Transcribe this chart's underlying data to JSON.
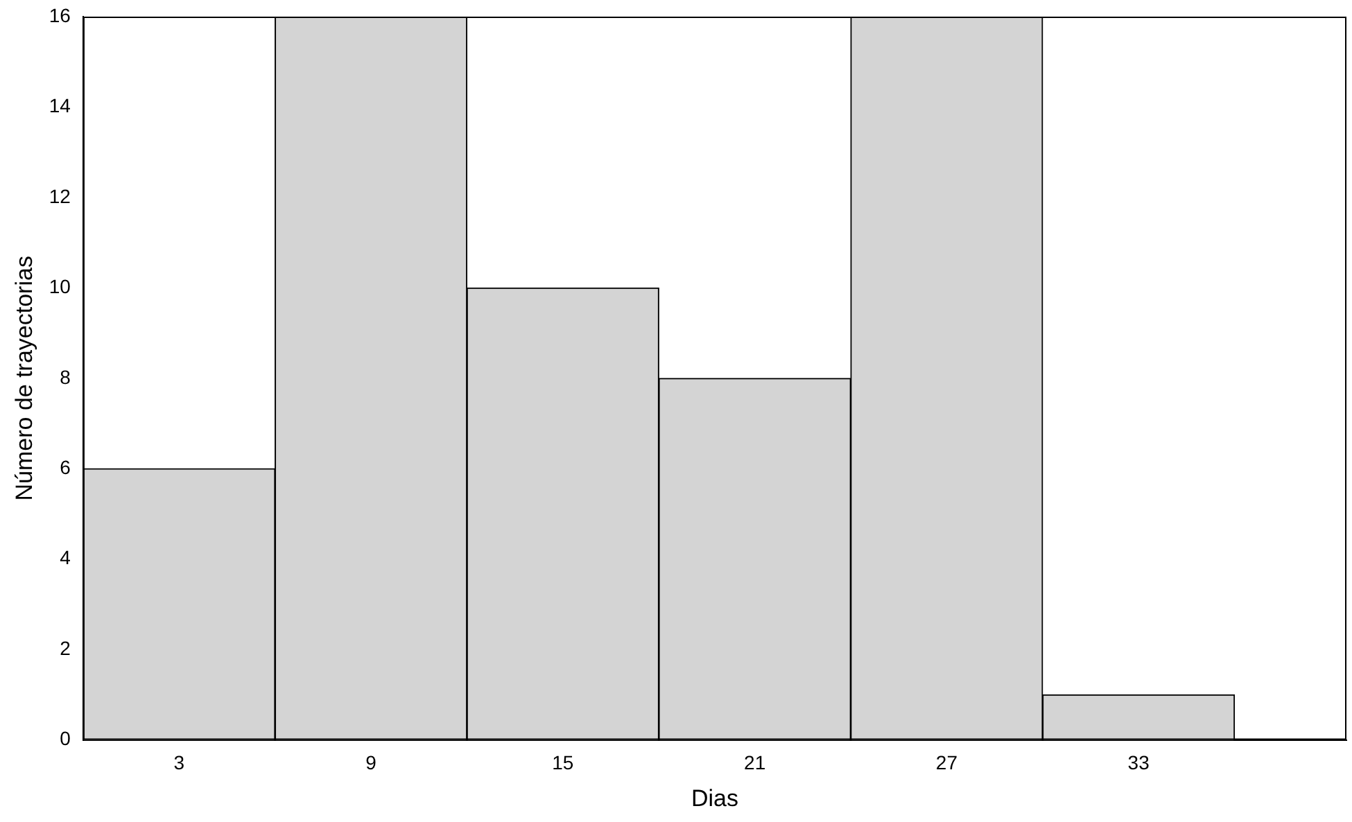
{
  "chart_data": {
    "type": "histogram",
    "xlabel": "Dias",
    "ylabel": "Número de trayectorias",
    "bins": [
      0,
      6,
      12,
      18,
      24,
      30,
      36
    ],
    "values": [
      6,
      16,
      10,
      8,
      16,
      1
    ],
    "color": "#d4d4d4",
    "xlim": [
      0,
      39.5
    ],
    "xticks": [
      3,
      9,
      15,
      21,
      27,
      33
    ],
    "ylim": [
      0,
      16
    ],
    "yticks": [
      0,
      2,
      4,
      6,
      8,
      10,
      12,
      14,
      16
    ],
    "grid": false,
    "legend": false
  }
}
